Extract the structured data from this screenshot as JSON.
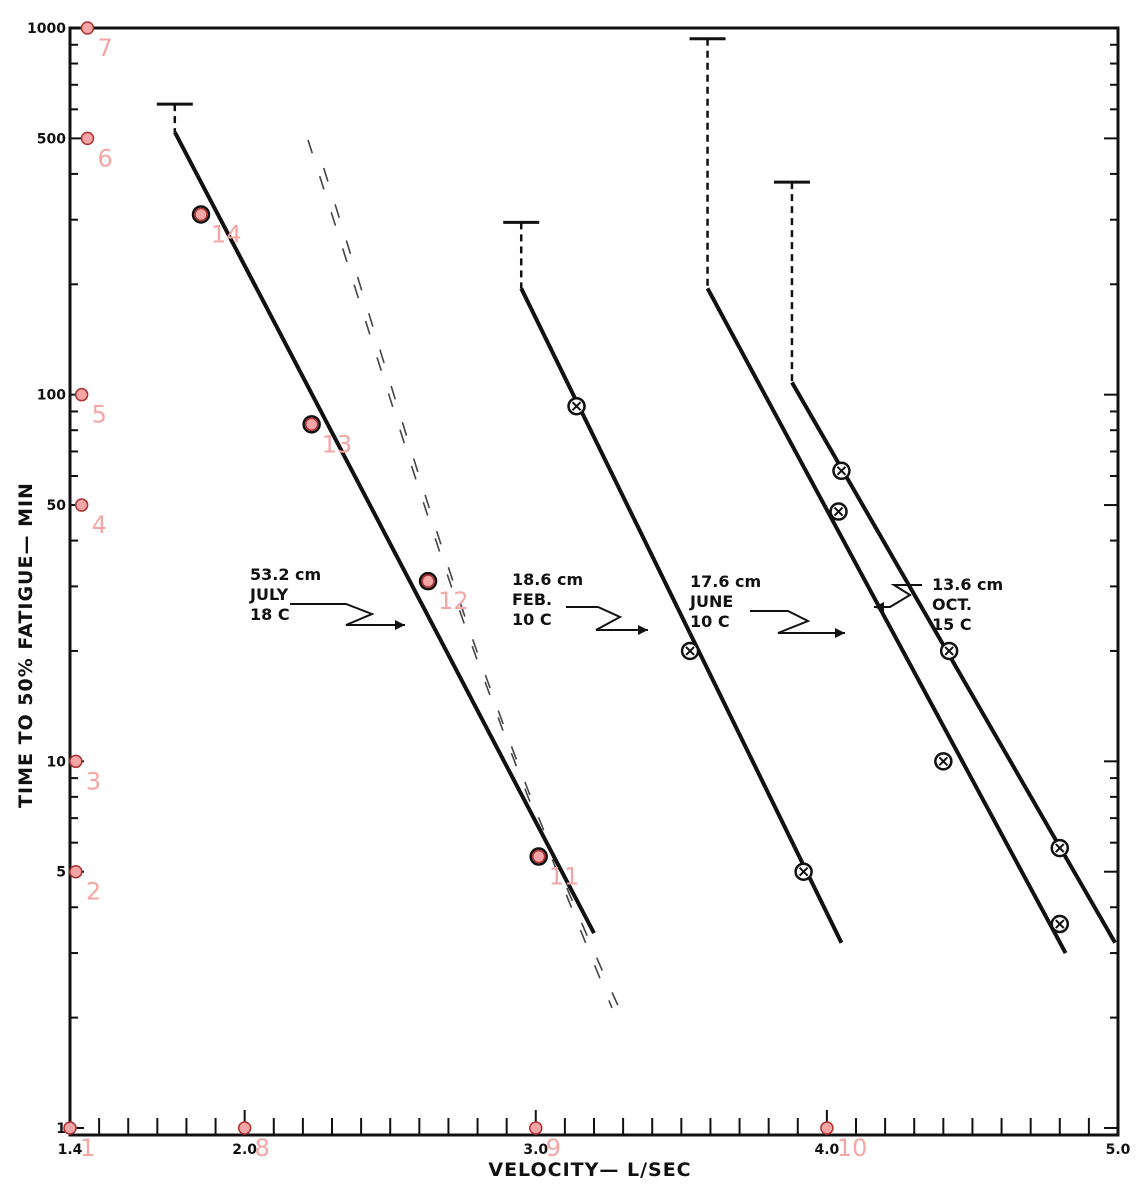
{
  "chart_data": {
    "type": "line",
    "title": "",
    "xlabel": "VELOCITY— L/SEC",
    "ylabel": "TIME TO 50% FATIGUE— MIN",
    "xlim": [
      1.4,
      5.0
    ],
    "ylim": [
      1,
      1000
    ],
    "yscale": "log",
    "x_ticks": [
      {
        "value": 1.4,
        "label": "1.4"
      },
      {
        "value": 2.0,
        "label": "2.0"
      },
      {
        "value": 3.0,
        "label": "3.0"
      },
      {
        "value": 4.0,
        "label": "4.0"
      },
      {
        "value": 5.0,
        "label": "5.0"
      }
    ],
    "y_ticks": [
      {
        "value": 1,
        "label": "1"
      },
      {
        "value": 5,
        "label": "5"
      },
      {
        "value": 10,
        "label": "10"
      },
      {
        "value": 50,
        "label": "50"
      },
      {
        "value": 100,
        "label": "100"
      },
      {
        "value": 500,
        "label": "500"
      },
      {
        "value": 1000,
        "label": "1000"
      }
    ],
    "grid": false,
    "legend": "none",
    "series": [
      {
        "name": "53.2 cm JULY 18 C",
        "label_lines": [
          "53.2 cm",
          "JULY",
          "18 C"
        ],
        "fit": {
          "x": [
            1.76,
            3.2
          ],
          "y": [
            520,
            3.4
          ]
        },
        "cap": {
          "x": 1.76,
          "y_top": 620
        },
        "points": [
          {
            "x": 1.85,
            "y": 310
          },
          {
            "x": 2.23,
            "y": 83
          },
          {
            "x": 2.63,
            "y": 31
          },
          {
            "x": 3.01,
            "y": 5.5
          }
        ]
      },
      {
        "name": "18.6 cm FEB. 10 C",
        "label_lines": [
          "18.6 cm",
          "FEB.",
          "10 C"
        ],
        "fit": {
          "x": [
            2.95,
            4.05
          ],
          "y": [
            195,
            3.2
          ]
        },
        "cap": {
          "x": 2.95,
          "y_top": 295
        },
        "points": [
          {
            "x": 3.14,
            "y": 93
          },
          {
            "x": 3.53,
            "y": 20
          },
          {
            "x": 3.92,
            "y": 5
          }
        ]
      },
      {
        "name": "17.6 cm JUNE 10 C",
        "label_lines": [
          "17.6 cm",
          "JUNE",
          "10 C"
        ],
        "fit": {
          "x": [
            3.59,
            4.82
          ],
          "y": [
            195,
            3.0
          ]
        },
        "cap": {
          "x": 3.59,
          "y_top": 935
        },
        "points": [
          {
            "x": 4.04,
            "y": 48
          },
          {
            "x": 4.4,
            "y": 10
          },
          {
            "x": 4.8,
            "y": 3.6
          }
        ]
      },
      {
        "name": "13.6 cm OCT. 15 C",
        "label_lines": [
          "13.6 cm",
          "OCT.",
          "15 C"
        ],
        "fit": {
          "x": [
            3.88,
            4.99
          ],
          "y": [
            108,
            3.2
          ]
        },
        "cap": {
          "x": 3.88,
          "y_top": 380
        },
        "points": [
          {
            "x": 4.05,
            "y": 62
          },
          {
            "x": 4.42,
            "y": 20
          },
          {
            "x": 4.8,
            "y": 5.8
          }
        ]
      }
    ],
    "annotations": [
      {
        "id": 1,
        "label": "1",
        "x": 1.4,
        "y": 1
      },
      {
        "id": 2,
        "label": "2",
        "x": 1.42,
        "y": 5
      },
      {
        "id": 3,
        "label": "3",
        "x": 1.42,
        "y": 10
      },
      {
        "id": 4,
        "label": "4",
        "x": 1.44,
        "y": 50
      },
      {
        "id": 5,
        "label": "5",
        "x": 1.44,
        "y": 100
      },
      {
        "id": 6,
        "label": "6",
        "x": 1.46,
        "y": 500
      },
      {
        "id": 7,
        "label": "7",
        "x": 1.46,
        "y": 1000
      },
      {
        "id": 8,
        "label": "8",
        "x": 2.0,
        "y": 1
      },
      {
        "id": 9,
        "label": "9",
        "x": 3.0,
        "y": 1
      },
      {
        "id": 10,
        "label": "10",
        "x": 4.0,
        "y": 1
      },
      {
        "id": 11,
        "label": "11",
        "x": 3.01,
        "y": 5.5
      },
      {
        "id": 12,
        "label": "12",
        "x": 2.63,
        "y": 31
      },
      {
        "id": 13,
        "label": "13",
        "x": 2.23,
        "y": 83
      },
      {
        "id": 14,
        "label": "14",
        "x": 1.85,
        "y": 310
      }
    ]
  }
}
